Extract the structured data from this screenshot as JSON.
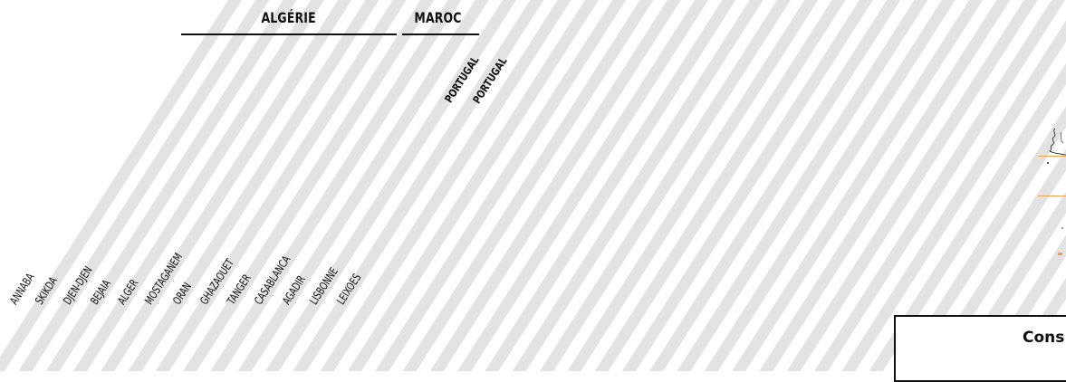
{
  "countries": {
    "algerie": "ALGÉRIE",
    "maroc": "MAROC"
  },
  "portugal_tags": [
    "PORTUGAL",
    "PORTUGAL"
  ],
  "ports": [
    "ANNABA",
    "SKIKDA",
    "DJEN-DJEN",
    "BEJAIA",
    "ALGER",
    "MOSTAGANEM",
    "ORAN",
    "GHAZAOUET",
    "TANGER",
    "CASABLANCA",
    "AGADIR",
    "LISBONNE",
    "LEIXOES"
  ],
  "legend": {
    "title": "Cons"
  },
  "colors": {
    "stripe": "#e3e3e3",
    "accent": "#f0a050",
    "text": "#111111"
  }
}
